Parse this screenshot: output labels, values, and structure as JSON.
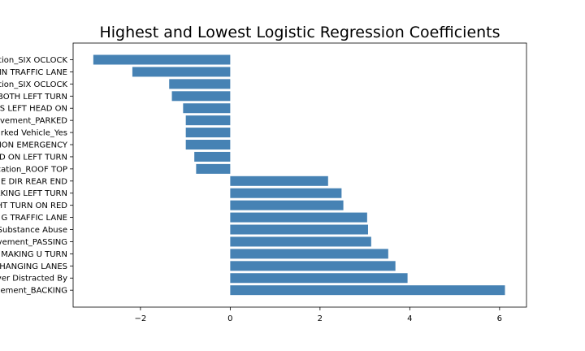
{
  "chart_data": {
    "type": "bar",
    "orientation": "horizontal",
    "title": "Highest and Lowest Logistic Regression Coefficients",
    "xlabel": "",
    "ylabel": "",
    "xlim": [
      -3.5,
      6.6
    ],
    "xticks": [
      -2,
      0,
      2,
      4,
      6
    ],
    "xtick_labels": [
      "−2",
      "0",
      "2",
      "4",
      "6"
    ],
    "grid": false,
    "bar_color": "#4682b4",
    "categories": [
      "ation_SIX OCLOCK",
      "IN TRAFFIC LANE",
      "ation_SIX OCLOCK",
      "BOTH LEFT TURN",
      "S LEFT HEAD ON",
      "vement_PARKED",
      "rked Vehicle_Yes",
      "NON EMERGENCY",
      "D ON LEFT TURN",
      "cation_ROOF TOP",
      "E DIR REAR END",
      "AKING LEFT TURN",
      "HT TURN ON RED",
      "G TRAFFIC LANE",
      "Substance Abuse",
      "vement_PASSING",
      "MAKING U TURN",
      "HANGING LANES",
      "ver Distracted By",
      "ement_BACKING"
    ],
    "values": [
      -3.05,
      -2.18,
      -1.36,
      -1.3,
      -1.05,
      -0.99,
      -0.99,
      -0.99,
      -0.8,
      -0.76,
      2.18,
      2.48,
      2.52,
      3.05,
      3.07,
      3.14,
      3.52,
      3.68,
      3.95,
      6.12
    ]
  }
}
